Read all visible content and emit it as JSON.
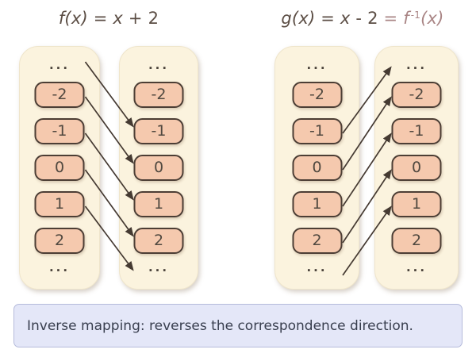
{
  "palette": {
    "canvas_bg": "#ffffff",
    "column_bg": "#fbf3de",
    "column_border": "#efe5cb",
    "pill_bg": "#f5c9ae",
    "pill_border": "#4c3e35",
    "pill_text": "#50483f",
    "dots_text": "#4c443c",
    "title_text": "#5b4d44",
    "accent_text": "#a98585",
    "arrow_color": "#453a32",
    "caption_bg": "#e4e7f8",
    "caption_border": "#b5bbdb",
    "caption_text": "#383e4e"
  },
  "diagrams": [
    {
      "name": "forward-function",
      "title_segments": [
        {
          "text": "f(x)",
          "style": "italic"
        },
        {
          "text": " = ",
          "style": "plain"
        },
        {
          "text": "x",
          "style": "italic"
        },
        {
          "text": " + 2",
          "style": "plain"
        }
      ],
      "columns": [
        [
          "...",
          "-2",
          "-1",
          "0",
          "1",
          "2",
          "..."
        ],
        [
          "...",
          "-2",
          "-1",
          "0",
          "1",
          "2",
          "..."
        ]
      ],
      "mappings": [
        {
          "from_slot": 0,
          "to_slot": 2
        },
        {
          "from_slot": 1,
          "to_slot": 3
        },
        {
          "from_slot": 2,
          "to_slot": 4
        },
        {
          "from_slot": 3,
          "to_slot": 5
        },
        {
          "from_slot": 4,
          "to_slot": 6
        }
      ]
    },
    {
      "name": "inverse-function",
      "title_segments": [
        {
          "text": "g(x)",
          "style": "italic"
        },
        {
          "text": " = ",
          "style": "plain"
        },
        {
          "text": "x",
          "style": "italic"
        },
        {
          "text": " - 2 ",
          "style": "plain"
        },
        {
          "text": "= ",
          "style": "plain",
          "accent": true
        },
        {
          "text": "f",
          "style": "italic",
          "accent": true
        },
        {
          "text": "-1",
          "style": "sup",
          "accent": true
        },
        {
          "text": "(x)",
          "style": "italic",
          "accent": true
        }
      ],
      "columns": [
        [
          "...",
          "-2",
          "-1",
          "0",
          "1",
          "2",
          "..."
        ],
        [
          "...",
          "-2",
          "-1",
          "0",
          "1",
          "2",
          "..."
        ]
      ],
      "mappings": [
        {
          "from_slot": 2,
          "to_slot": 0
        },
        {
          "from_slot": 3,
          "to_slot": 1
        },
        {
          "from_slot": 4,
          "to_slot": 2
        },
        {
          "from_slot": 5,
          "to_slot": 3
        },
        {
          "from_slot": 6,
          "to_slot": 4
        }
      ]
    }
  ],
  "caption": {
    "text": "Inverse mapping: reverses the correspondence direction."
  }
}
